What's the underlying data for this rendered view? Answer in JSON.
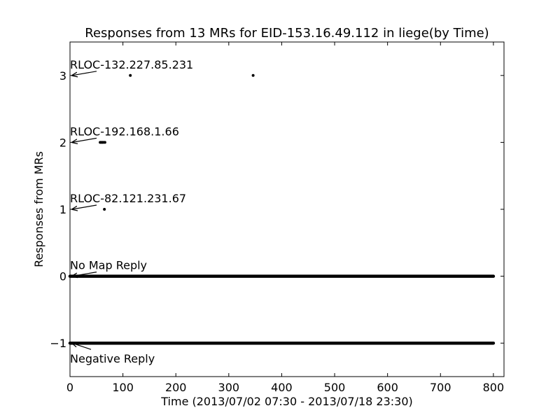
{
  "chart_data": {
    "type": "scatter",
    "title": "Responses from 13 MRs for EID-153.16.49.112 in liege(by Time)",
    "xlabel": "Time (2013/07/02 07:30 - 2013/07/18 23:30)",
    "ylabel": "Responses from MRs",
    "xlim": [
      0,
      820
    ],
    "ylim": [
      -1.5,
      3.5
    ],
    "x_ticks": [
      0,
      100,
      200,
      300,
      400,
      500,
      600,
      700,
      800
    ],
    "y_ticks": [
      -1,
      0,
      1,
      2,
      3
    ],
    "y_tick_labels": [
      "−1",
      "0",
      "1",
      "2",
      "3"
    ],
    "grid": false,
    "marker_color": "#000000",
    "series": [
      {
        "values": [
          {
            "y": 3,
            "x_range": null,
            "x": [
              114,
              346
            ]
          },
          {
            "y": 2,
            "x_range": null,
            "x": [
              57,
              59,
              61,
              63,
              66
            ]
          },
          {
            "y": 1,
            "x_range": null,
            "x": [
              65
            ]
          },
          {
            "y": 0,
            "x_range": [
              0,
              800
            ],
            "x": []
          },
          {
            "y": -1,
            "x_range": [
              0,
              800
            ],
            "x": [
              56,
              60,
              64,
              114
            ]
          }
        ]
      }
    ],
    "annotations": [
      {
        "text": "RLOC-132.227.85.231",
        "point": [
          0,
          3
        ]
      },
      {
        "text": "RLOC-192.168.1.66",
        "point": [
          0,
          2
        ]
      },
      {
        "text": "RLOC-82.121.231.67",
        "point": [
          0,
          1
        ]
      },
      {
        "text": "No Map Reply",
        "point": [
          0,
          0
        ]
      },
      {
        "text": "Negative Reply",
        "point": [
          0,
          -1
        ]
      }
    ]
  }
}
